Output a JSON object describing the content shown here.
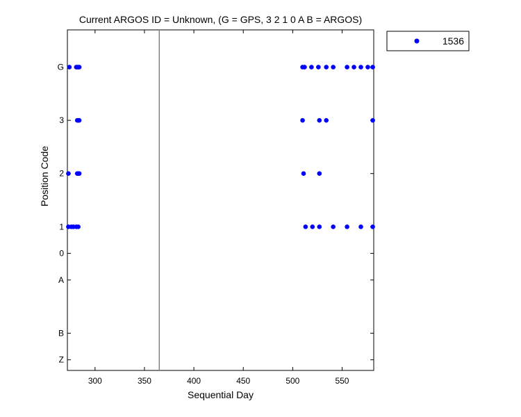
{
  "chart_data": {
    "type": "scatter",
    "title": "Current ARGOS ID = Unknown,  (G = GPS, 3 2 1 0 A B = ARGOS)",
    "xlabel": "Sequential Day",
    "ylabel": "Position Code",
    "xlim": [
      272,
      582
    ],
    "x_ticks": [
      300,
      350,
      400,
      450,
      500,
      550
    ],
    "y_levels": [
      {
        "label": "Z",
        "value": -3
      },
      {
        "label": "B",
        "value": -2
      },
      {
        "label": "A",
        "value": 0
      },
      {
        "label": "0",
        "value": 1
      },
      {
        "label": "1",
        "value": 2
      },
      {
        "label": "2",
        "value": 4
      },
      {
        "label": "3",
        "value": 6
      },
      {
        "label": "G",
        "value": 8
      }
    ],
    "ylim": [
      -3.4,
      9.4
    ],
    "vline": 365,
    "marker_color": "#0000ff",
    "series": [
      {
        "name": "1536",
        "points": [
          {
            "x": 274,
            "y": "G"
          },
          {
            "x": 281,
            "y": "G"
          },
          {
            "x": 282,
            "y": "G"
          },
          {
            "x": 283,
            "y": "G"
          },
          {
            "x": 284,
            "y": "G"
          },
          {
            "x": 282,
            "y": "3"
          },
          {
            "x": 283,
            "y": "3"
          },
          {
            "x": 284,
            "y": "3"
          },
          {
            "x": 273,
            "y": "2"
          },
          {
            "x": 282,
            "y": "2"
          },
          {
            "x": 283,
            "y": "2"
          },
          {
            "x": 284,
            "y": "2"
          },
          {
            "x": 273,
            "y": "1"
          },
          {
            "x": 276,
            "y": "1"
          },
          {
            "x": 278,
            "y": "1"
          },
          {
            "x": 281,
            "y": "1"
          },
          {
            "x": 283,
            "y": "1"
          },
          {
            "x": 510,
            "y": "G"
          },
          {
            "x": 512,
            "y": "G"
          },
          {
            "x": 519,
            "y": "G"
          },
          {
            "x": 526,
            "y": "G"
          },
          {
            "x": 534,
            "y": "G"
          },
          {
            "x": 541,
            "y": "G"
          },
          {
            "x": 555,
            "y": "G"
          },
          {
            "x": 562,
            "y": "G"
          },
          {
            "x": 569,
            "y": "G"
          },
          {
            "x": 576,
            "y": "G"
          },
          {
            "x": 581,
            "y": "G"
          },
          {
            "x": 510,
            "y": "3"
          },
          {
            "x": 527,
            "y": "3"
          },
          {
            "x": 534,
            "y": "3"
          },
          {
            "x": 581,
            "y": "3"
          },
          {
            "x": 511,
            "y": "2"
          },
          {
            "x": 527,
            "y": "2"
          },
          {
            "x": 513,
            "y": "1"
          },
          {
            "x": 520,
            "y": "1"
          },
          {
            "x": 527,
            "y": "1"
          },
          {
            "x": 541,
            "y": "1"
          },
          {
            "x": 555,
            "y": "1"
          },
          {
            "x": 569,
            "y": "1"
          },
          {
            "x": 581,
            "y": "1"
          }
        ]
      }
    ],
    "legend": {
      "position": "outside-top-right",
      "entries": [
        "1536"
      ]
    }
  }
}
